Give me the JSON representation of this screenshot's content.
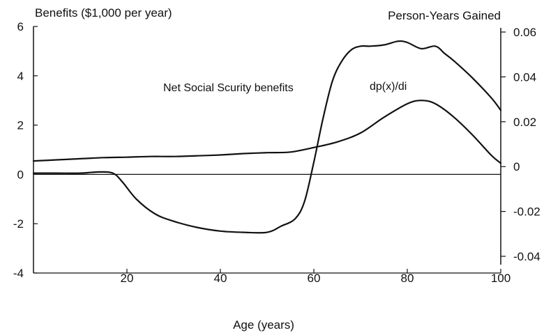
{
  "chart_data": {
    "type": "line",
    "left_axis_label": "Benefits ($1,000 per year)",
    "right_axis_label": "Person-Years Gained",
    "xlabel": "Age (years)",
    "xlim": [
      0,
      100
    ],
    "ylim_left": [
      -4,
      6
    ],
    "ylim_right": [
      -0.04,
      0.06
    ],
    "x_ticks": [
      20,
      40,
      60,
      80,
      100
    ],
    "x_tick_labels": [
      "20",
      "40",
      "60",
      "80",
      "100"
    ],
    "y_ticks_left": [
      -4,
      -2,
      0,
      2,
      4,
      6
    ],
    "y_tick_labels_left": [
      "-4",
      "-2",
      "0",
      "2",
      "4",
      "6"
    ],
    "y_ticks_right": [
      -0.04,
      -0.02,
      0,
      0.02,
      0.04,
      0.06
    ],
    "y_tick_labels_right": [
      "-0.04",
      "-0.02",
      "0",
      "0.02",
      "0.04",
      "0.06"
    ],
    "grid": false,
    "series": [
      {
        "name": "Net Social Scurity benefits",
        "axis": "left",
        "x": [
          0,
          5,
          10,
          14,
          17,
          19,
          22,
          26,
          30,
          35,
          40,
          45,
          50,
          53,
          56,
          58,
          60,
          62,
          64,
          66,
          68,
          70,
          72,
          75,
          78,
          80,
          83,
          86,
          88,
          90,
          94,
          98,
          100
        ],
        "y": [
          0.05,
          0.05,
          0.05,
          0.1,
          0.05,
          -0.3,
          -1.0,
          -1.6,
          -1.9,
          -2.15,
          -2.3,
          -2.35,
          -2.35,
          -2.1,
          -1.8,
          -1.1,
          0.5,
          2.3,
          3.8,
          4.6,
          5.05,
          5.2,
          5.2,
          5.25,
          5.4,
          5.35,
          5.1,
          5.2,
          4.9,
          4.6,
          3.9,
          3.1,
          2.6
        ]
      },
      {
        "name": "dp(x)/di",
        "axis": "right",
        "x": [
          0,
          5,
          10,
          15,
          20,
          25,
          30,
          35,
          40,
          45,
          50,
          55,
          60,
          65,
          70,
          75,
          80,
          83,
          86,
          90,
          94,
          98,
          100
        ],
        "y": [
          0.0025,
          0.003,
          0.0035,
          0.004,
          0.0042,
          0.0045,
          0.0045,
          0.0048,
          0.0052,
          0.0058,
          0.0062,
          0.0065,
          0.0085,
          0.011,
          0.015,
          0.022,
          0.028,
          0.0295,
          0.028,
          0.022,
          0.014,
          0.005,
          0.0015
        ]
      }
    ]
  }
}
